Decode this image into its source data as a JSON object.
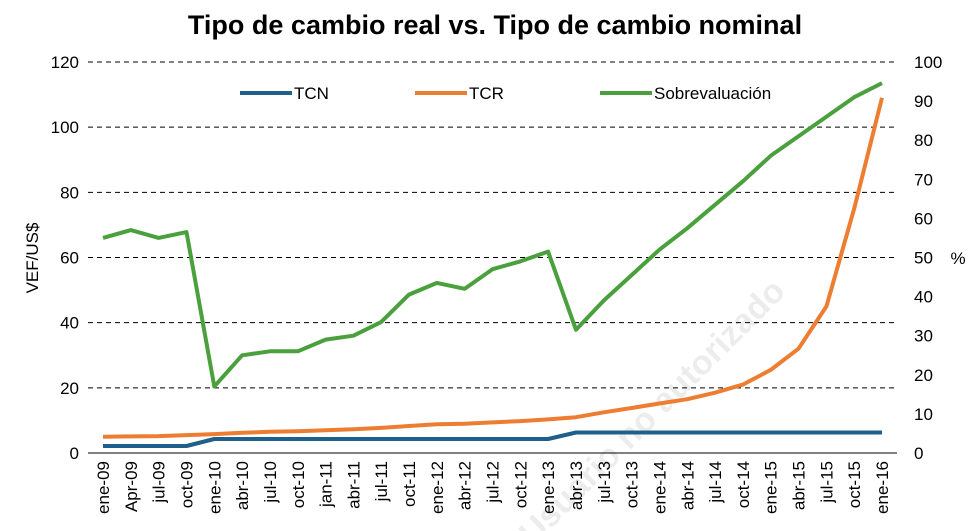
{
  "chart_data": {
    "type": "line",
    "title": "Tipo de cambio real vs. Tipo de cambio nominal",
    "y_label": "VEF/US$",
    "y2_label": "%",
    "watermark": "Usuario no autorizado",
    "categories": [
      "ene-09",
      "Apr-09",
      "jul-09",
      "oct-09",
      "ene-10",
      "abr-10",
      "jul-10",
      "oct-10",
      "jan-11",
      "abr-11",
      "jul-11",
      "oct-11",
      "ene-12",
      "abr-12",
      "jul-12",
      "oct-12",
      "ene-13",
      "abr-13",
      "jul-13",
      "oct-13",
      "ene-14",
      "abr-14",
      "jul-14",
      "oct-14",
      "ene-15",
      "abr-15",
      "jul-15",
      "oct-15",
      "ene-16"
    ],
    "series": [
      {
        "name": "TCN",
        "color": "#1f5f8b",
        "axis": "y",
        "values": [
          2.15,
          2.15,
          2.15,
          2.15,
          4.3,
          4.3,
          4.3,
          4.3,
          4.3,
          4.3,
          4.3,
          4.3,
          4.3,
          4.3,
          4.3,
          4.3,
          4.3,
          6.3,
          6.3,
          6.3,
          6.3,
          6.3,
          6.3,
          6.3,
          6.3,
          6.3,
          6.3,
          6.3,
          6.3
        ]
      },
      {
        "name": "TCR",
        "color": "#ed7d31",
        "axis": "y",
        "values": [
          5,
          5.1,
          5.2,
          5.5,
          5.8,
          6.2,
          6.5,
          6.7,
          7,
          7.3,
          7.7,
          8.3,
          8.8,
          9,
          9.4,
          9.8,
          10.3,
          11,
          12.5,
          13.8,
          15.2,
          16.5,
          18.5,
          21,
          25.5,
          32,
          45,
          75,
          109
        ]
      },
      {
        "name": "Sobrevaluación",
        "color": "#4aa03c",
        "axis": "y2",
        "values": [
          55,
          57,
          55,
          56.5,
          17,
          25,
          26,
          26,
          29,
          30,
          33.5,
          40.5,
          43.5,
          42,
          47,
          49,
          51.5,
          31.5,
          39,
          45.5,
          52,
          57.5,
          63.5,
          69.5,
          76,
          81,
          86,
          91,
          94.6
        ]
      }
    ],
    "ylim": [
      0,
      120
    ],
    "yticks": [
      0,
      20,
      40,
      60,
      80,
      100,
      120
    ],
    "y2lim": [
      0,
      100
    ],
    "y2ticks": [
      0,
      10,
      20,
      30,
      40,
      50,
      60,
      70,
      80,
      90,
      100
    ],
    "grid": true,
    "legend": "top"
  }
}
